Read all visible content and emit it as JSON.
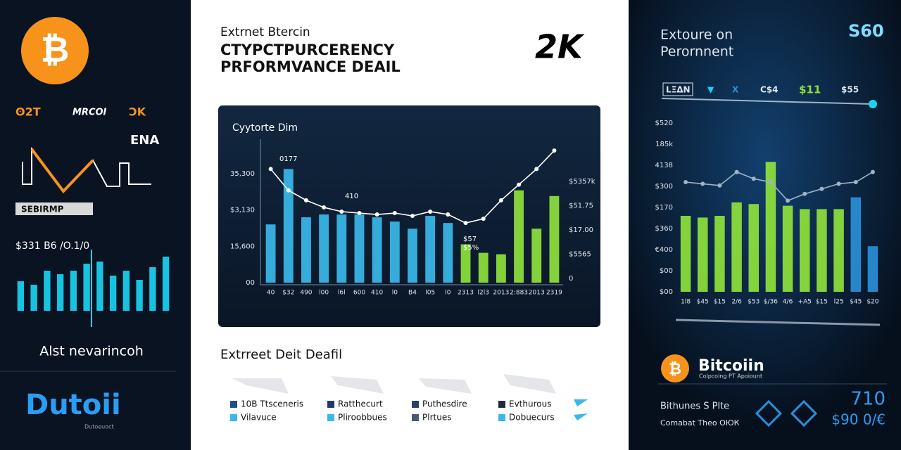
{
  "left_panel": {
    "logos": [
      "ʘ2T",
      "MRCOI",
      "ƆK",
      "ENA"
    ],
    "badge": "SEBIRMP",
    "stat": "$331 B6 /O.1/0",
    "chart": {
      "type": "bar",
      "values": [
        42,
        37,
        57,
        52,
        57,
        67,
        70,
        50,
        57,
        44,
        62,
        77
      ],
      "ylim": [
        0,
        100
      ],
      "color": "#19d3f2"
    },
    "caption": "Alst nevarincoh",
    "brand": "Dutoii",
    "brand_sub": "Dutoeuoct"
  },
  "center_panel": {
    "kicker": "Extrnet Btercin",
    "title": [
      "CTYPCTPURCERENCY",
      "PRFORMVANCE DEAIL"
    ],
    "badge": "2K",
    "chart": {
      "type": "bar",
      "title": "Cyytorte Dim",
      "categories": [
        "40",
        "$32",
        "490",
        "l00",
        "l6l",
        "600",
        "410",
        "l0",
        "B4",
        "l05",
        "l0",
        "2313",
        "l2l3",
        "2013",
        "2:883",
        "2013",
        "2319"
      ],
      "values": [
        41,
        80,
        46,
        48,
        48,
        48,
        46,
        43,
        38,
        47,
        42,
        27,
        21,
        20,
        65,
        38,
        61
      ],
      "colors": [
        "#3ab8ea",
        "#3ab8ea",
        "#3ab8ea",
        "#3ab8ea",
        "#3ab8ea",
        "#3ab8ea",
        "#3ab8ea",
        "#3ab8ea",
        "#3ab8ea",
        "#3ab8ea",
        "#3ab8ea",
        "#8ee23c",
        "#8ee23c",
        "#8ee23c",
        "#8ee23c",
        "#8ee23c",
        "#8ee23c"
      ],
      "line_values": [
        80,
        65,
        58,
        53,
        50,
        49,
        48,
        49,
        47,
        50,
        48,
        42,
        45,
        58,
        69,
        80,
        93
      ],
      "line_color": "#ffffff",
      "ylim": [
        0,
        100
      ],
      "y_labels": [
        "00",
        "15,600",
        "$3,130",
        "35,300"
      ],
      "right_labels": [
        "$5357k",
        "$51.75",
        "$17.00",
        "$5565",
        "0"
      ],
      "annotations": [
        "0177",
        "410",
        "$57",
        "$5%"
      ]
    },
    "section_title": "Extrreet Deit Deafil",
    "legend": [
      {
        "name": "10B Ttsceneris",
        "color": "#1f4e8c"
      },
      {
        "name": "Vilavuce",
        "color": "#3ab8ea"
      },
      {
        "name": "Ratthecurt",
        "color": "#1f3a6a"
      },
      {
        "name": "Pliroobbues",
        "color": "#3ab8ea"
      },
      {
        "name": "Puthesdire",
        "color": "#2b4060"
      },
      {
        "name": "Plrtues",
        "color": "#4a5a70"
      },
      {
        "name": "Evthurous",
        "color": "#222a36"
      },
      {
        "name": "Dobuecurs",
        "color": "#3ab8ea"
      }
    ]
  },
  "right_panel": {
    "title": [
      "Extoure on",
      "Perornnent"
    ],
    "logo": "S60",
    "toolbar": [
      {
        "text": "LΞΔN",
        "color": "#dfe6ee"
      },
      {
        "text": "▼",
        "color": "#19d3f2"
      },
      {
        "text": "X",
        "color": "#2a8fd8"
      },
      {
        "text": "C$4",
        "color": "#dfe6ee"
      },
      {
        "text": "$11",
        "color": "#8ee23c"
      },
      {
        "text": "$55",
        "color": "#dfe6ee"
      }
    ],
    "chart": {
      "type": "bar",
      "categories": [
        "1l8",
        "$45",
        "$15",
        "2/6",
        "$53",
        "$/36",
        "4/6",
        "+A5",
        "$15",
        "l25",
        "$45",
        "$20"
      ],
      "values": [
        45,
        44,
        45,
        53,
        52,
        77,
        51,
        49,
        49,
        49,
        56,
        27
      ],
      "colors": [
        "#8ee23c",
        "#8ee23c",
        "#8ee23c",
        "#8ee23c",
        "#8ee23c",
        "#8ee23c",
        "#8ee23c",
        "#8ee23c",
        "#8ee23c",
        "#8ee23c",
        "#2a8fd8",
        "#2a8fd8"
      ],
      "line_values": [
        65,
        64,
        63,
        71,
        67,
        65,
        54,
        58,
        61,
        64,
        65,
        71
      ],
      "line_color": "#9fb4c8",
      "ylim": [
        0,
        100
      ],
      "y_labels": [
        "$00",
        "$00",
        "€400",
        "$360",
        "$170",
        "$300",
        "4138",
        "185k",
        "$520"
      ]
    },
    "brand": "Bitcoiin",
    "brand_sub": "Colpcoing PT Apoiount",
    "footer": [
      "Bithunes S Plte",
      "Comabat Theo ОЮК"
    ],
    "stat": "710",
    "stat_sub": "$90 0/€"
  }
}
